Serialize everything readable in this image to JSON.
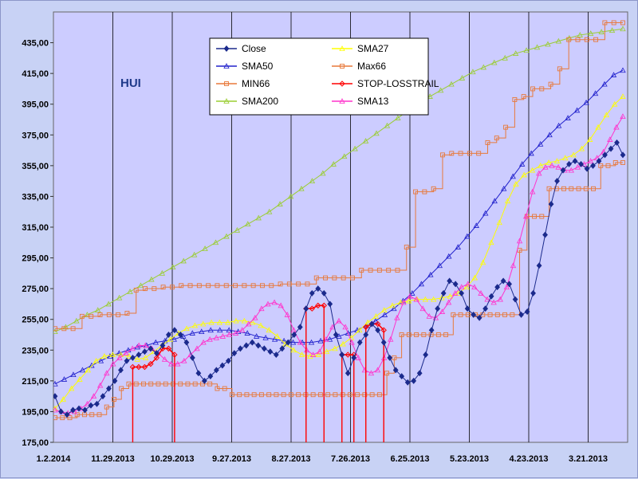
{
  "chart_data": {
    "type": "line",
    "title": "HUI",
    "x_labels": [
      "1.2.2014",
      "11.29.2013",
      "10.29.2013",
      "9.27.2013",
      "8.27.2013",
      "7.26.2013",
      "6.25.2013",
      "5.23.2013",
      "4.23.2013",
      "3.21.2013"
    ],
    "x_reversed": true,
    "y_ticks": [
      "175,00",
      "195,00",
      "215,00",
      "235,00",
      "255,00",
      "275,00",
      "295,00",
      "315,00",
      "335,00",
      "355,00",
      "375,00",
      "395,00",
      "415,00",
      "435,00"
    ],
    "ylim": [
      175,
      455
    ],
    "grid": "vertical",
    "legend_position": "top-center",
    "series": [
      {
        "name": "Close",
        "color": "#1b2a8c",
        "marker": "diamond-filled",
        "values": [
          205,
          195,
          193,
          196,
          197,
          196,
          199,
          200,
          205,
          210,
          215,
          222,
          228,
          230,
          232,
          234,
          236,
          233,
          238,
          245,
          248,
          245,
          240,
          230,
          220,
          215,
          218,
          222,
          225,
          228,
          233,
          236,
          238,
          240,
          238,
          236,
          234,
          232,
          236,
          240,
          245,
          250,
          262,
          272,
          275,
          272,
          265,
          245,
          232,
          220,
          230,
          240,
          245,
          252,
          248,
          240,
          230,
          222,
          218,
          214,
          215,
          220,
          232,
          248,
          262,
          272,
          280,
          278,
          272,
          262,
          258,
          256,
          262,
          270,
          276,
          280,
          278,
          268,
          258,
          260,
          272,
          290,
          310,
          330,
          345,
          352,
          356,
          358,
          356,
          353,
          355,
          358,
          362,
          366,
          370,
          362
        ]
      },
      {
        "name": "SMA27",
        "color": "#ffff00",
        "marker": "triangle-open",
        "values": [
          197,
          203,
          210,
          216,
          222,
          228,
          231,
          232,
          232,
          231,
          229,
          230,
          234,
          238,
          242,
          246,
          249,
          251,
          252,
          253,
          253,
          253,
          254,
          254,
          253,
          251,
          248,
          244,
          239,
          235,
          232,
          231,
          232,
          234,
          236,
          239,
          243,
          248,
          253,
          257,
          261,
          264,
          266,
          267,
          268,
          268,
          268,
          269,
          270,
          272,
          276,
          282,
          292,
          305,
          318,
          332,
          343,
          349,
          352,
          355,
          357,
          358,
          360,
          362,
          366,
          372,
          380,
          388,
          395,
          400
        ]
      },
      {
        "name": "SMA50",
        "color": "#2222cc",
        "marker": "triangle-open",
        "values": [
          213,
          216,
          219,
          222,
          225,
          228,
          231,
          233,
          235,
          237,
          238,
          240,
          241,
          242,
          244,
          246,
          247,
          248,
          248,
          248,
          247,
          246,
          244,
          243,
          242,
          241,
          240,
          240,
          240,
          241,
          242,
          244,
          246,
          248,
          251,
          254,
          258,
          262,
          267,
          272,
          278,
          284,
          290,
          296,
          302,
          309,
          316,
          324,
          332,
          340,
          348,
          356,
          363,
          369,
          375,
          381,
          386,
          391,
          396,
          402,
          408,
          414,
          417
        ]
      },
      {
        "name": "Max66",
        "color": "#e8793a",
        "marker": "square-open",
        "values": [
          249,
          249,
          249,
          257,
          257,
          258,
          258,
          258,
          259,
          274,
          275,
          275,
          276,
          276,
          277,
          277,
          277,
          277,
          277,
          277,
          277,
          277,
          277,
          277,
          277,
          278,
          278,
          278,
          278,
          282,
          282,
          282,
          282,
          282,
          287,
          287,
          287,
          287,
          287,
          302,
          338,
          338,
          340,
          362,
          363,
          363,
          363,
          363,
          370,
          373,
          380,
          398,
          400,
          405,
          405,
          408,
          418,
          437,
          437,
          437,
          437,
          448,
          448,
          448
        ]
      },
      {
        "name": "MIN66",
        "color": "#e8793a",
        "marker": "square-open",
        "values": [
          191,
          191,
          191,
          193,
          193,
          193,
          193,
          198,
          203,
          210,
          213,
          213,
          213,
          213,
          213,
          213,
          213,
          213,
          213,
          213,
          213,
          213,
          210,
          210,
          206,
          206,
          206,
          206,
          206,
          206,
          206,
          206,
          206,
          206,
          206,
          206,
          206,
          206,
          206,
          206,
          206,
          206,
          206,
          206,
          206,
          220,
          230,
          245,
          245,
          245,
          245,
          245,
          245,
          245,
          258,
          258,
          258,
          258,
          258,
          258,
          258,
          258,
          258,
          300,
          322,
          322,
          322,
          340,
          340,
          340,
          340,
          340,
          340,
          340,
          355,
          355,
          357,
          357
        ]
      },
      {
        "name": "STOP-LOSSTRAIL",
        "color": "#ff0000",
        "marker": "diamond-open",
        "values": [
          null,
          null,
          null,
          null,
          null,
          null,
          null,
          null,
          null,
          null,
          null,
          null,
          null,
          224,
          224,
          224,
          226,
          230,
          236,
          236,
          232,
          null,
          null,
          null,
          null,
          null,
          null,
          null,
          null,
          null,
          null,
          null,
          null,
          null,
          null,
          null,
          null,
          null,
          null,
          null,
          null,
          null,
          262,
          262,
          264,
          264,
          null,
          null,
          232,
          232,
          232,
          null,
          250,
          252,
          252,
          248,
          null,
          null,
          null,
          null,
          null,
          null,
          null,
          null,
          null,
          null,
          null,
          null,
          null,
          null,
          null,
          null,
          null,
          null,
          null,
          null,
          null,
          null,
          null,
          null,
          null,
          null,
          null,
          null,
          null,
          null,
          null,
          null,
          null,
          null,
          null,
          null,
          null,
          null,
          null,
          null
        ]
      },
      {
        "name": "SMA200",
        "color": "#9acd32",
        "marker": "triangle-open",
        "values": [
          247,
          250,
          254,
          258,
          261,
          265,
          269,
          273,
          277,
          281,
          285,
          289,
          293,
          297,
          301,
          305,
          309,
          313,
          317,
          321,
          325,
          330,
          335,
          340,
          345,
          350,
          356,
          361,
          366,
          371,
          376,
          381,
          386,
          391,
          396,
          400,
          404,
          408,
          412,
          416,
          419,
          422,
          425,
          428,
          430,
          432,
          434,
          436,
          438,
          440,
          441,
          442,
          443,
          444
        ]
      },
      {
        "name": "SMA13",
        "color": "#ff33cc",
        "marker": "triangle-open",
        "values": [
          196,
          195,
          194,
          195,
          197,
          200,
          205,
          212,
          220,
          226,
          230,
          233,
          236,
          238,
          238,
          236,
          233,
          229,
          226,
          226,
          228,
          232,
          236,
          240,
          242,
          243,
          244,
          245,
          246,
          248,
          252,
          256,
          262,
          265,
          266,
          264,
          258,
          248,
          240,
          235,
          232,
          234,
          242,
          250,
          254,
          250,
          240,
          230,
          222,
          220,
          222,
          230,
          242,
          256,
          266,
          270,
          268,
          262,
          257,
          256,
          260,
          266,
          272,
          276,
          278,
          276,
          272,
          268,
          266,
          268,
          276,
          290,
          306,
          322,
          338,
          350,
          354,
          355,
          354,
          352,
          352,
          354,
          356,
          358,
          360,
          364,
          372,
          380,
          387
        ]
      }
    ]
  }
}
